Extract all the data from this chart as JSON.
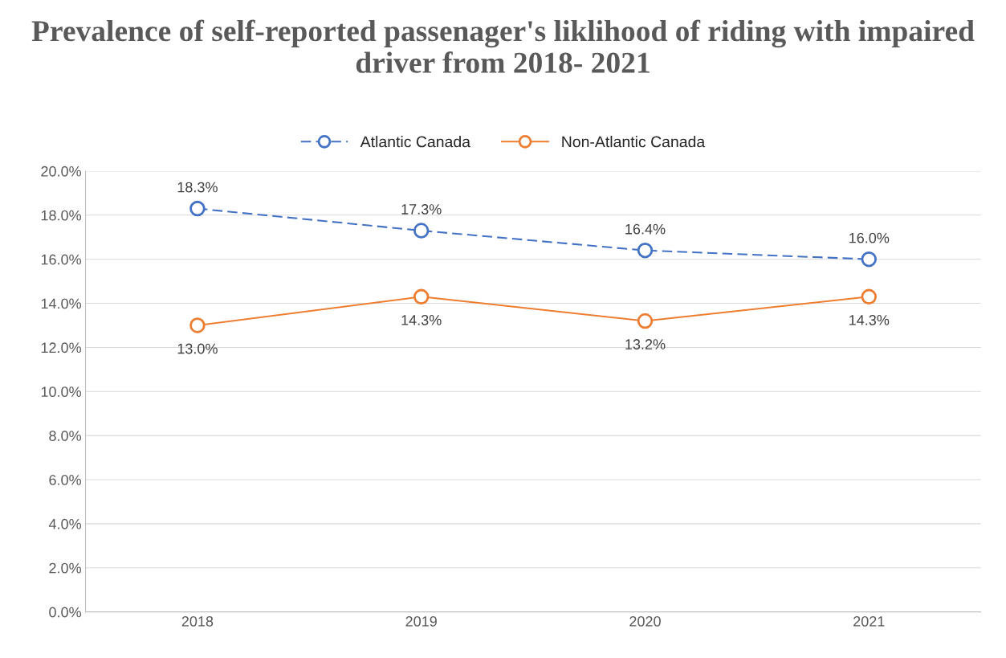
{
  "chart_data": {
    "type": "line",
    "title": "Prevalence of self-reported passenager's liklihood of riding with impaired driver from 2018- 2021",
    "categories": [
      "2018",
      "2019",
      "2020",
      "2021"
    ],
    "series": [
      {
        "name": "Atlantic Canada",
        "color": "#4472c4",
        "line_style": "dashed",
        "values": [
          18.3,
          17.3,
          16.4,
          16.0
        ],
        "value_labels": [
          "18.3%",
          "17.3%",
          "16.4%",
          "16.0%"
        ]
      },
      {
        "name": "Non-Atlantic Canada",
        "color": "#ed7d31",
        "line_style": "solid",
        "values": [
          13.0,
          14.3,
          13.2,
          14.3
        ],
        "value_labels": [
          "13.0%",
          "14.3%",
          "13.2%",
          "14.3%"
        ]
      }
    ],
    "ylim": [
      0,
      20
    ],
    "yticks": [
      {
        "value": 0,
        "label": "0.0%"
      },
      {
        "value": 2,
        "label": "2.0%"
      },
      {
        "value": 4,
        "label": "4.0%"
      },
      {
        "value": 6,
        "label": "6.0%"
      },
      {
        "value": 8,
        "label": "8.0%"
      },
      {
        "value": 10,
        "label": "10.0%"
      },
      {
        "value": 12,
        "label": "12.0%"
      },
      {
        "value": 14,
        "label": "14.0%"
      },
      {
        "value": 16,
        "label": "16.0%"
      },
      {
        "value": 18,
        "label": "18.0%"
      },
      {
        "value": 20,
        "label": "20.0%"
      }
    ],
    "grid": "y",
    "legend": "top",
    "marker": "circle"
  }
}
